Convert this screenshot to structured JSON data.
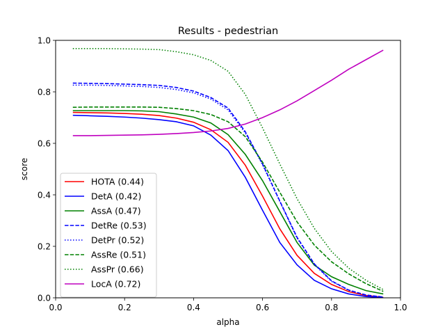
{
  "chart_data": {
    "type": "line",
    "title": "Results - pedestrian",
    "xlabel": "alpha",
    "ylabel": "score",
    "xlim": [
      0.0,
      1.0
    ],
    "ylim": [
      0.0,
      1.0
    ],
    "xticks": [
      "0.0",
      "0.2",
      "0.4",
      "0.6",
      "0.8",
      "1.0"
    ],
    "yticks": [
      "0.0",
      "0.2",
      "0.4",
      "0.6",
      "0.8",
      "1.0"
    ],
    "grid": false,
    "legend_position": "lower-left",
    "x": [
      0.05,
      0.1,
      0.15,
      0.2,
      0.25,
      0.3,
      0.35,
      0.4,
      0.45,
      0.5,
      0.55,
      0.6,
      0.65,
      0.7,
      0.75,
      0.8,
      0.85,
      0.9,
      0.95
    ],
    "series": [
      {
        "name": "HOTA (0.44)",
        "color": "#ff0000",
        "dash": "solid",
        "values": [
          0.72,
          0.719,
          0.718,
          0.716,
          0.713,
          0.708,
          0.698,
          0.682,
          0.653,
          0.604,
          0.515,
          0.395,
          0.268,
          0.165,
          0.095,
          0.052,
          0.024,
          0.009,
          0.002
        ]
      },
      {
        "name": "DetA (0.42)",
        "color": "#0000ff",
        "dash": "solid",
        "values": [
          0.709,
          0.707,
          0.705,
          0.702,
          0.698,
          0.692,
          0.684,
          0.668,
          0.632,
          0.572,
          0.468,
          0.34,
          0.215,
          0.128,
          0.068,
          0.035,
          0.015,
          0.005,
          0.001
        ]
      },
      {
        "name": "AssA (0.47)",
        "color": "#008000",
        "dash": "solid",
        "values": [
          0.727,
          0.727,
          0.727,
          0.727,
          0.726,
          0.723,
          0.714,
          0.702,
          0.679,
          0.634,
          0.557,
          0.455,
          0.335,
          0.215,
          0.127,
          0.082,
          0.052,
          0.028,
          0.015
        ]
      },
      {
        "name": "DetRe (0.53)",
        "color": "#0000ff",
        "dash": "dashed",
        "values": [
          0.834,
          0.833,
          0.832,
          0.83,
          0.828,
          0.825,
          0.817,
          0.803,
          0.778,
          0.737,
          0.645,
          0.52,
          0.376,
          0.235,
          0.132,
          0.066,
          0.03,
          0.011,
          0.003
        ]
      },
      {
        "name": "DetPr (0.52)",
        "color": "#0000ff",
        "dash": "dotted",
        "values": [
          0.826,
          0.826,
          0.825,
          0.823,
          0.821,
          0.817,
          0.809,
          0.796,
          0.772,
          0.73,
          0.64,
          0.517,
          0.374,
          0.232,
          0.13,
          0.064,
          0.029,
          0.01,
          0.002
        ]
      },
      {
        "name": "AssRe (0.51)",
        "color": "#008000",
        "dash": "dashed",
        "values": [
          0.74,
          0.741,
          0.741,
          0.741,
          0.741,
          0.74,
          0.735,
          0.727,
          0.712,
          0.684,
          0.626,
          0.527,
          0.41,
          0.295,
          0.205,
          0.14,
          0.093,
          0.055,
          0.025
        ]
      },
      {
        "name": "AssPr (0.66)",
        "color": "#008000",
        "dash": "dotted",
        "values": [
          0.968,
          0.968,
          0.968,
          0.967,
          0.966,
          0.964,
          0.956,
          0.944,
          0.922,
          0.88,
          0.79,
          0.66,
          0.52,
          0.385,
          0.27,
          0.18,
          0.115,
          0.068,
          0.032
        ]
      },
      {
        "name": "LocA (0.72)",
        "color": "#bf00bf",
        "dash": "solid",
        "values": [
          0.63,
          0.63,
          0.631,
          0.632,
          0.633,
          0.635,
          0.638,
          0.642,
          0.648,
          0.658,
          0.675,
          0.7,
          0.73,
          0.765,
          0.805,
          0.845,
          0.888,
          0.925,
          0.962
        ]
      }
    ]
  }
}
